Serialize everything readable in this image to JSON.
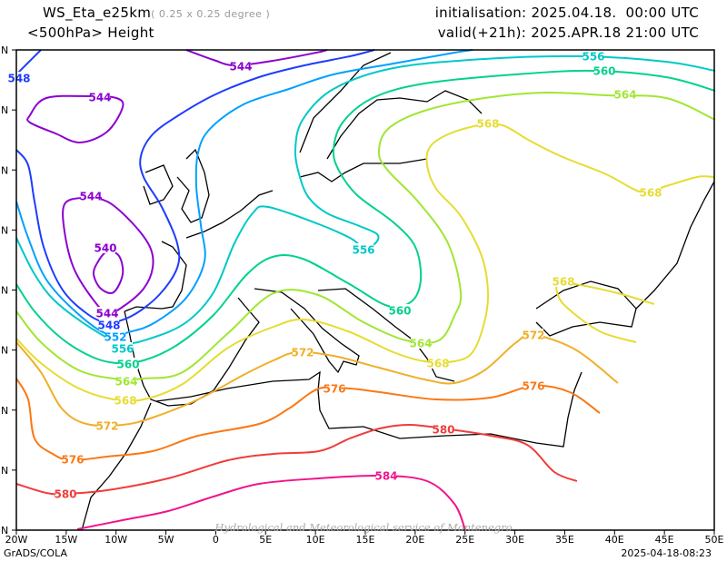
{
  "header": {
    "model": "WS_Eta_e25km",
    "resolution": "( 0.25 x 0.25 degree )",
    "field": "<500hPa> Height",
    "initialisation": "initialisation: 2025.04.18.  00:00 UTC",
    "valid": "valid(+21h): 2025.APR.18 21:00 UTC"
  },
  "axes": {
    "x_ticks": [
      "20W",
      "15W",
      "10W",
      "5W",
      "0",
      "5E",
      "10E",
      "15E",
      "20E",
      "25E",
      "30E",
      "35E",
      "40E",
      "45E",
      "50E"
    ],
    "y_tick_suffix": "N"
  },
  "contours": [
    {
      "level": 540,
      "color": "#8c00d2"
    },
    {
      "level": 544,
      "color": "#8c00d2"
    },
    {
      "level": 548,
      "color": "#1e3cff"
    },
    {
      "level": 552,
      "color": "#00a0ff"
    },
    {
      "level": 556,
      "color": "#00c8c8"
    },
    {
      "level": 560,
      "color": "#00d28c"
    },
    {
      "level": 564,
      "color": "#a0e632"
    },
    {
      "level": 568,
      "color": "#e6dc32"
    },
    {
      "level": 572,
      "color": "#f0af28"
    },
    {
      "level": 576,
      "color": "#fa7814"
    },
    {
      "level": 580,
      "color": "#f03c3c"
    },
    {
      "level": 584,
      "color": "#f0148c"
    }
  ],
  "watermark": "Hydrological and Meteorological service of Montenegro",
  "footer": {
    "left": "GrADS/COLA",
    "right": "2025-04-18-08:23"
  }
}
